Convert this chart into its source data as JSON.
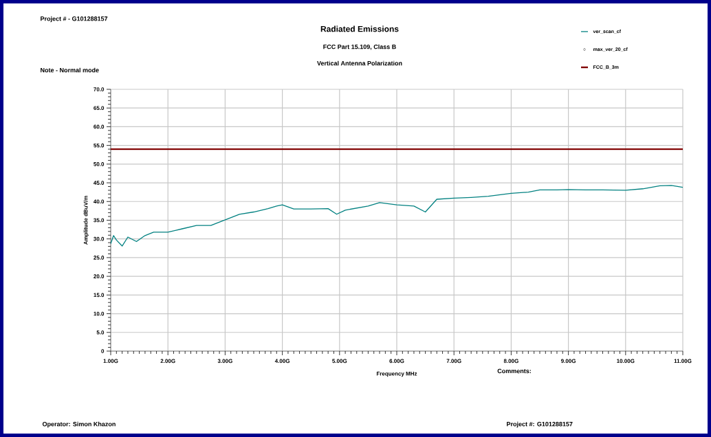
{
  "chart_data": {
    "type": "line",
    "title": "Radiated Emissions",
    "subtitle": "FCC Part 15.109, Class B\nVertical Antenna Polarization",
    "xlabel": "Frequency MHz",
    "ylabel": "Amplitude dBuV/m",
    "annotations": [
      "Project # - G101288157",
      "Note - Normal mode",
      "Comments:",
      "Operator: Simon Khazon",
      "Project #: G101288157"
    ],
    "xlim": [
      1,
      11
    ],
    "ylim": [
      0,
      70
    ],
    "xticks": [
      {
        "value": 1,
        "label": "1.00G"
      },
      {
        "value": 2,
        "label": "2.00G"
      },
      {
        "value": 3,
        "label": "3.00G"
      },
      {
        "value": 4,
        "label": "4.00G"
      },
      {
        "value": 5,
        "label": "5.00G"
      },
      {
        "value": 6,
        "label": "6.00G"
      },
      {
        "value": 7,
        "label": "7.00G"
      },
      {
        "value": 8,
        "label": "8.00G"
      },
      {
        "value": 9,
        "label": "9.00G"
      },
      {
        "value": 10,
        "label": "10.00G"
      },
      {
        "value": 11,
        "label": "11.00G"
      }
    ],
    "yticks": [
      0,
      {
        "value": 5,
        "label": "5.0"
      },
      {
        "value": 10,
        "label": "10.0"
      },
      {
        "value": 15,
        "label": "15.0"
      },
      {
        "value": 20,
        "label": "20.0"
      },
      {
        "value": 25,
        "label": "25.0"
      },
      {
        "value": 30,
        "label": "30.0"
      },
      {
        "value": 35,
        "label": "35.0"
      },
      {
        "value": 40,
        "label": "40.0"
      },
      {
        "value": 45,
        "label": "45.0"
      },
      {
        "value": 50,
        "label": "50.0"
      },
      {
        "value": 55,
        "label": "55.0"
      },
      {
        "value": 60,
        "label": "60.0"
      },
      {
        "value": 65,
        "label": "65.0"
      },
      {
        "value": 70,
        "label": "70.0"
      }
    ],
    "grid": true,
    "legend": "top right",
    "series": [
      {
        "name": "ver_scan_cf",
        "color": "#008080",
        "x": [
          1.0,
          1.05,
          1.1,
          1.2,
          1.3,
          1.45,
          1.6,
          1.75,
          2.0,
          2.25,
          2.5,
          2.75,
          3.0,
          3.25,
          3.5,
          3.75,
          3.9,
          4.0,
          4.2,
          4.5,
          4.8,
          4.95,
          5.1,
          5.5,
          5.7,
          6.0,
          6.3,
          6.5,
          6.7,
          7.0,
          7.3,
          7.6,
          8.0,
          8.3,
          8.5,
          8.8,
          9.0,
          9.3,
          9.6,
          10.0,
          10.3,
          10.6,
          10.8,
          11.0
        ],
        "values": [
          28.7,
          30.9,
          29.7,
          28.1,
          30.5,
          29.3,
          30.9,
          31.8,
          31.8,
          32.7,
          33.6,
          33.6,
          35.1,
          36.6,
          37.2,
          38.1,
          38.8,
          39.1,
          38.0,
          38.0,
          38.1,
          36.6,
          37.7,
          38.8,
          39.7,
          39.1,
          38.8,
          37.2,
          40.6,
          40.9,
          41.1,
          41.4,
          42.2,
          42.5,
          43.1,
          43.1,
          43.2,
          43.1,
          43.1,
          43.0,
          43.4,
          44.2,
          44.3,
          43.8
        ]
      },
      {
        "name": "max_ver_20_cf",
        "type": "scatter",
        "marker": "diamond",
        "color": "#000000"
      },
      {
        "name": "FCC_B_3m",
        "color": "#800000",
        "x": [
          1,
          11
        ],
        "values": [
          54,
          54
        ]
      }
    ]
  }
}
